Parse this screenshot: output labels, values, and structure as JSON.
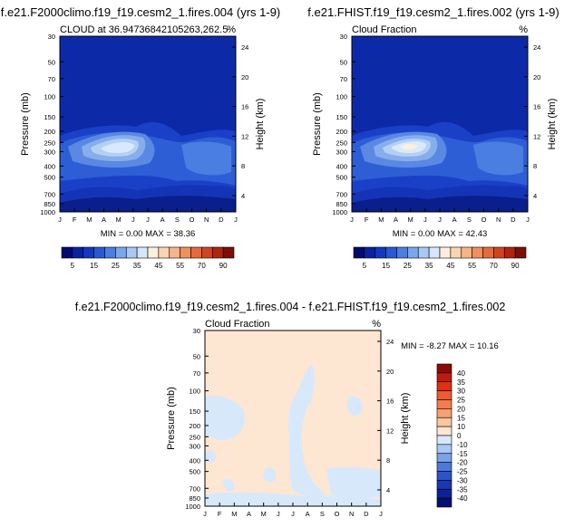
{
  "chart_data": [
    {
      "type": "heatmap",
      "title": "f.e21.F2000climo.f19_f19.cesm2_1.fires.004 (yrs 1-9)",
      "subtitle_left": "CLOUD at 36.94736842105263,262.5",
      "subtitle_right": "%",
      "ylabel": "Pressure (mb)",
      "ylabel_right": "Height (km)",
      "x_ticks": [
        "J",
        "F",
        "M",
        "A",
        "M",
        "J",
        "J",
        "A",
        "S",
        "O",
        "N",
        "D",
        "J"
      ],
      "y_ticks": [
        "30",
        "50",
        "70",
        "100",
        "150",
        "200",
        "250",
        "300",
        "400",
        "500",
        "700",
        "850",
        "1000"
      ],
      "y_ticks_right": [
        "24",
        "20",
        "16",
        "12",
        "8",
        "4"
      ],
      "min_max_text": "MIN =   0.00 MAX =  38.36",
      "colorbar_labels": [
        "5",
        "15",
        "25",
        "35",
        "45",
        "55",
        "70",
        "90"
      ],
      "colorbar_colors": [
        "#050a70",
        "#0a22a0",
        "#1238c2",
        "#2858d4",
        "#4a7ee0",
        "#7aa6ec",
        "#a9c9f4",
        "#d4e6fb",
        "#fdeedd",
        "#fbd4b2",
        "#f7b489",
        "#f0905f",
        "#e56a3c",
        "#d2441f",
        "#b0250e",
        "#7a1005"
      ],
      "levels_note": "cloud fraction contours, monthly climatology"
    },
    {
      "type": "heatmap",
      "title": "f.e21.FHIST.f19_f19.cesm2_1.fires.002 (yrs 1-9)",
      "subtitle_left": "Cloud Fraction",
      "subtitle_right": "%",
      "ylabel": "Pressure (mb)",
      "ylabel_right": "Height (km)",
      "x_ticks": [
        "J",
        "F",
        "M",
        "A",
        "M",
        "J",
        "J",
        "A",
        "S",
        "O",
        "N",
        "D",
        "J"
      ],
      "y_ticks": [
        "30",
        "50",
        "70",
        "100",
        "150",
        "200",
        "250",
        "300",
        "400",
        "500",
        "700",
        "850",
        "1000"
      ],
      "y_ticks_right": [
        "24",
        "20",
        "16",
        "12",
        "8",
        "4"
      ],
      "min_max_text": "MIN =   0.00 MAX =  42.43",
      "colorbar_labels": [
        "5",
        "15",
        "25",
        "35",
        "45",
        "55",
        "70",
        "90"
      ],
      "colorbar_colors": [
        "#050a70",
        "#0a22a0",
        "#1238c2",
        "#2858d4",
        "#4a7ee0",
        "#7aa6ec",
        "#a9c9f4",
        "#d4e6fb",
        "#fdeedd",
        "#fbd4b2",
        "#f7b489",
        "#f0905f",
        "#e56a3c",
        "#d2441f",
        "#b0250e",
        "#7a1005"
      ]
    },
    {
      "type": "heatmap",
      "title": "f.e21.F2000climo.f19_f19.cesm2_1.fires.004 - f.e21.FHIST.f19_f19.cesm2_1.fires.002",
      "subtitle_left": "Cloud Fraction",
      "subtitle_right": "%",
      "ylabel": "Pressure (mb)",
      "ylabel_right": "Height (km)",
      "x_ticks": [
        "J",
        "F",
        "M",
        "A",
        "M",
        "J",
        "J",
        "A",
        "S",
        "O",
        "N",
        "D",
        "J"
      ],
      "y_ticks": [
        "30",
        "50",
        "70",
        "100",
        "150",
        "200",
        "250",
        "300",
        "400",
        "500",
        "700",
        "850",
        "1000"
      ],
      "y_ticks_right": [
        "24",
        "20",
        "16",
        "12",
        "8",
        "4"
      ],
      "min_max_text": "MIN =  -8.27 MAX =  10.16",
      "colorbar_labels": [
        "40",
        "35",
        "30",
        "25",
        "20",
        "15",
        "10",
        "0",
        "-10",
        "-15",
        "-20",
        "-25",
        "-30",
        "-35",
        "-40"
      ],
      "colorbar_colors": [
        "#8b0a02",
        "#c01a08",
        "#e03010",
        "#ef5a2c",
        "#f47c4c",
        "#f7a070",
        "#fbc79f",
        "#fde6d2",
        "#d8e8fb",
        "#aac8f5",
        "#7aa2ea",
        "#4e78dc",
        "#2c54c8",
        "#1838b0",
        "#0c2294",
        "#061070"
      ]
    }
  ]
}
